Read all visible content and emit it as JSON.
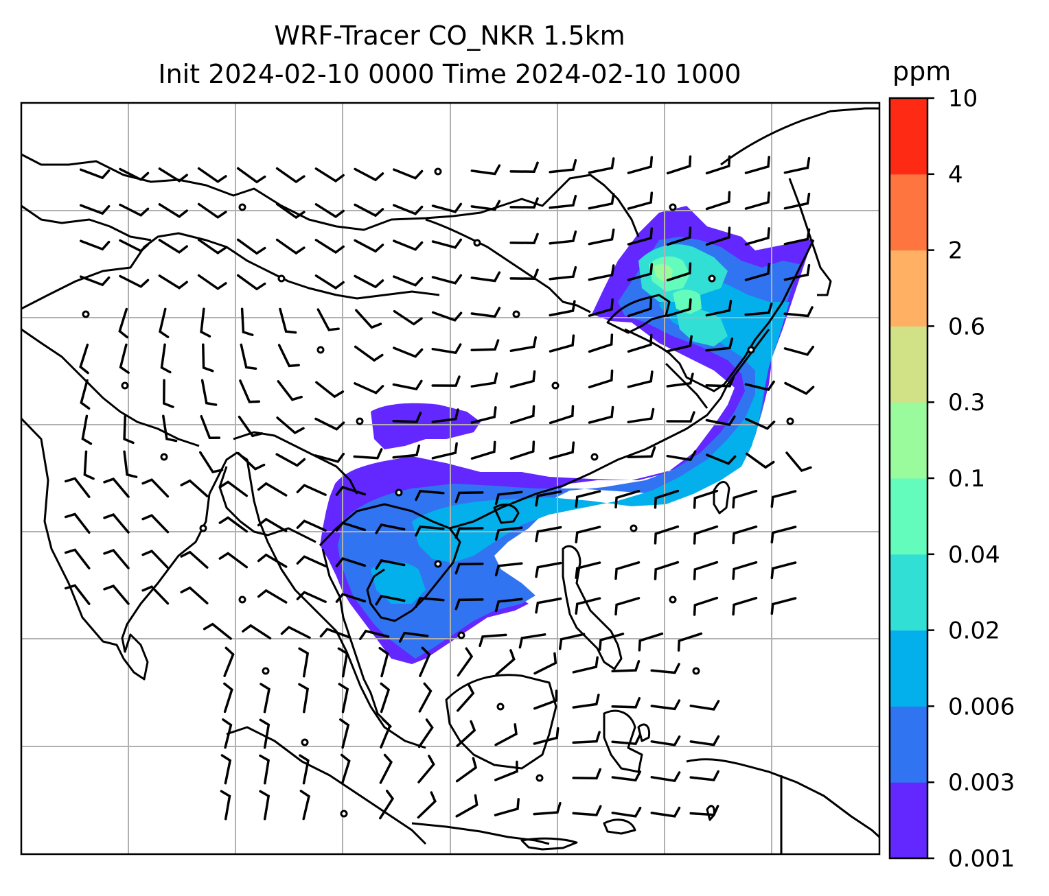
{
  "title": {
    "line1": "WRF-Tracer CO_NKR 1.5km",
    "line2": "Init 2024-02-10 0000 Time 2024-02-10 1000"
  },
  "colorbar": {
    "unit": "ppm",
    "levels": [
      "0.001",
      "0.003",
      "0.006",
      "0.02",
      "0.04",
      "0.1",
      "0.3",
      "0.6",
      "2",
      "4",
      "10"
    ],
    "colors": [
      "#6327ff",
      "#3174f1",
      "#03b0eb",
      "#31dfd5",
      "#63fcbc",
      "#9afb9c",
      "#d0e186",
      "#ffb063",
      "#ff7540",
      "#ff2a14"
    ]
  },
  "map": {
    "gridlines": true,
    "legend_position": "right",
    "land_color": "#ffffff",
    "coastline_color": "#000000",
    "grid_color": "#b0b0b0",
    "barb_color": "#000000"
  }
}
